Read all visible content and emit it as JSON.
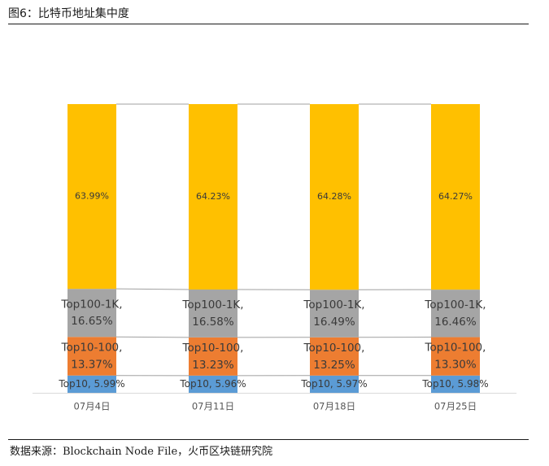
{
  "figure": {
    "title": "图6：比特币地址集中度",
    "source": "数据来源：Blockchain Node File，火币区块链研究院"
  },
  "colors": {
    "Top1K+": "#FFC000",
    "Top100-1K": "#A5A5A5",
    "Top10-100": "#ED7D31",
    "Top10": "#5B9BD5",
    "connector": "#A0A0A0",
    "axis": "#D9D9D9"
  },
  "chart_data": {
    "type": "bar",
    "stacked": true,
    "categories": [
      "07月4日",
      "07月11日",
      "07月18日",
      "07月25日"
    ],
    "series": [
      {
        "key": "Top10",
        "values": [
          5.99,
          5.96,
          5.97,
          5.98
        ],
        "labels": [
          "Top10, 5.99%",
          "Top10, 5.96%",
          "Top10, 5.97%",
          "Top10, 5.98%"
        ]
      },
      {
        "key": "Top10-100",
        "values": [
          13.37,
          13.23,
          13.25,
          13.3
        ],
        "labels": [
          [
            "Top10-100,",
            "13.37%"
          ],
          [
            "Top10-100,",
            "13.23%"
          ],
          [
            "Top10-100,",
            "13.25%"
          ],
          [
            "Top10-100,",
            "13.30%"
          ]
        ]
      },
      {
        "key": "Top100-1K",
        "values": [
          16.65,
          16.58,
          16.49,
          16.46
        ],
        "labels": [
          [
            "Top100-1K,",
            "16.65%"
          ],
          [
            "Top100-1K,",
            "16.58%"
          ],
          [
            "Top100-1K,",
            "16.49%"
          ],
          [
            "Top100-1K,",
            "16.46%"
          ]
        ]
      },
      {
        "key": "Top1K+",
        "values": [
          63.99,
          64.23,
          64.28,
          64.27
        ],
        "labels": [
          "63.99%",
          "64.23%",
          "64.28%",
          "64.27%"
        ]
      }
    ],
    "ylim": [
      0,
      100
    ],
    "grid": false,
    "legend": "none",
    "series_lines": true
  }
}
